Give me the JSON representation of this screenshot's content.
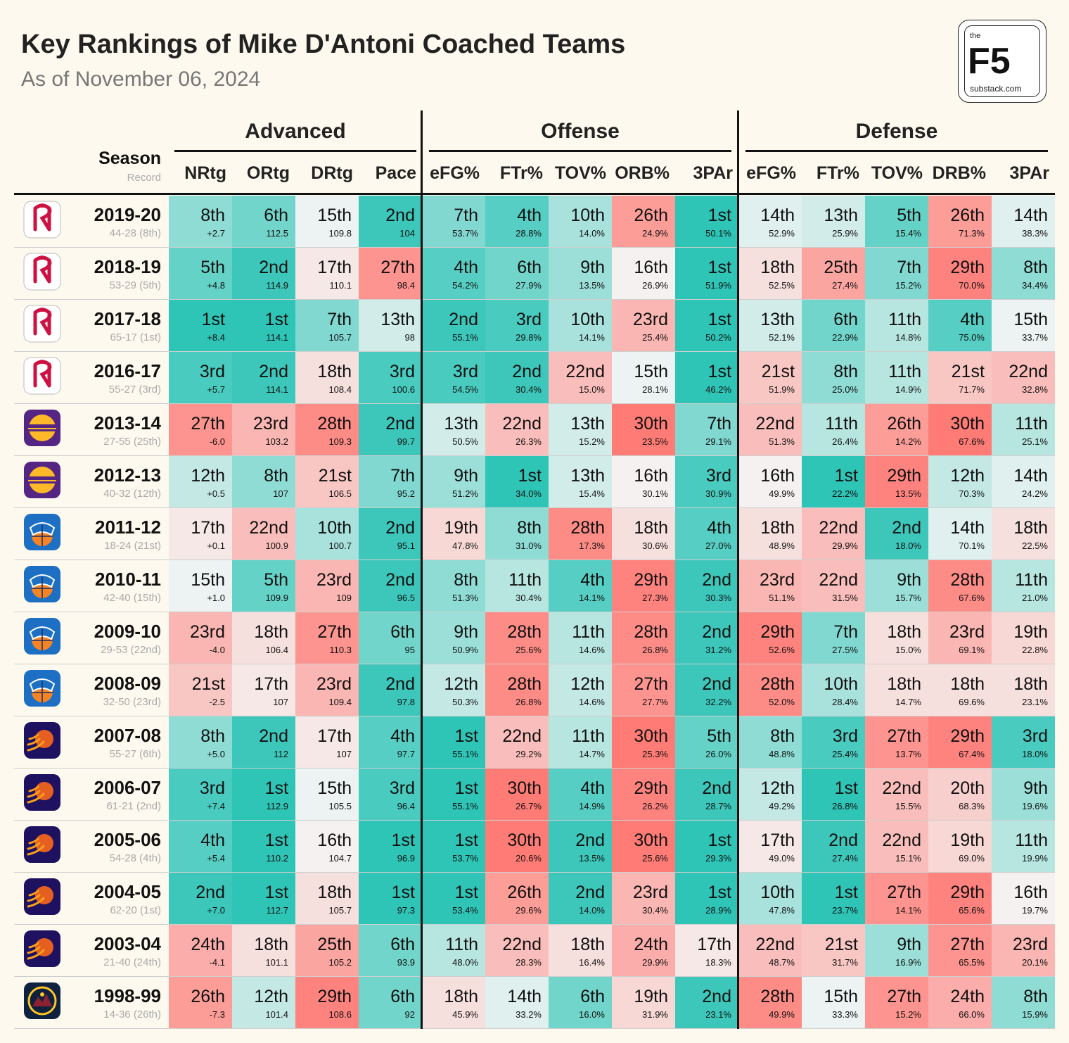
{
  "title": "Key Rankings of Mike D'Antoni Coached Teams",
  "subtitle": "As of November 06, 2024",
  "logo": {
    "the": "the",
    "name": "F5",
    "domain": "substack.com"
  },
  "colors": {
    "good": "#2ec4b6",
    "neutral": "#f4f5f4",
    "bad": "#ff7b75",
    "background": "#fdf9ee"
  },
  "chart_data": {
    "type": "table",
    "row_header": {
      "label": "Season",
      "sublabel": "Record"
    },
    "groups": [
      {
        "name": "Advanced",
        "columns": [
          "NRtg",
          "ORtg",
          "DRtg",
          "Pace"
        ]
      },
      {
        "name": "Offense",
        "columns": [
          "eFG%",
          "FTr%",
          "TOV%",
          "ORB%",
          "3PAr"
        ]
      },
      {
        "name": "Defense",
        "columns": [
          "eFG%",
          "FTr%",
          "TOV%",
          "DRB%",
          "3PAr"
        ]
      }
    ],
    "rows": [
      {
        "season": "2019-20",
        "record": "44-28 (8th)",
        "team_icon": "rockets-logo-icon",
        "ranks": [
          "8th",
          "6th",
          "15th",
          "2nd",
          "7th",
          "4th",
          "10th",
          "26th",
          "1st",
          "14th",
          "13th",
          "5th",
          "26th",
          "14th"
        ],
        "values": [
          "+2.7",
          "112.5",
          "109.8",
          "104",
          "53.7%",
          "28.8%",
          "14.0%",
          "24.9%",
          "50.1%",
          "52.9%",
          "25.9%",
          "15.4%",
          "71.3%",
          "38.3%"
        ]
      },
      {
        "season": "2018-19",
        "record": "53-29 (5th)",
        "team_icon": "rockets-logo-icon",
        "ranks": [
          "5th",
          "2nd",
          "17th",
          "27th",
          "4th",
          "6th",
          "9th",
          "16th",
          "1st",
          "18th",
          "25th",
          "7th",
          "29th",
          "8th"
        ],
        "values": [
          "+4.8",
          "114.9",
          "110.1",
          "98.4",
          "54.2%",
          "27.9%",
          "13.5%",
          "26.9%",
          "51.9%",
          "52.5%",
          "27.4%",
          "15.2%",
          "70.0%",
          "34.4%"
        ]
      },
      {
        "season": "2017-18",
        "record": "65-17 (1st)",
        "team_icon": "rockets-logo-icon",
        "ranks": [
          "1st",
          "1st",
          "7th",
          "13th",
          "2nd",
          "3rd",
          "10th",
          "23rd",
          "1st",
          "13th",
          "6th",
          "11th",
          "4th",
          "15th"
        ],
        "values": [
          "+8.4",
          "114.1",
          "105.7",
          "98",
          "55.1%",
          "29.8%",
          "14.1%",
          "25.4%",
          "50.2%",
          "52.1%",
          "22.9%",
          "14.8%",
          "75.0%",
          "33.7%"
        ]
      },
      {
        "season": "2016-17",
        "record": "55-27 (3rd)",
        "team_icon": "rockets-logo-icon",
        "ranks": [
          "3rd",
          "2nd",
          "18th",
          "3rd",
          "3rd",
          "2nd",
          "22nd",
          "15th",
          "1st",
          "21st",
          "8th",
          "11th",
          "21st",
          "22nd"
        ],
        "values": [
          "+5.7",
          "114.1",
          "108.4",
          "100.6",
          "54.5%",
          "30.4%",
          "15.0%",
          "28.1%",
          "46.2%",
          "51.9%",
          "25.0%",
          "14.9%",
          "71.7%",
          "32.8%"
        ]
      },
      {
        "season": "2013-14",
        "record": "27-55 (25th)",
        "team_icon": "lakers-logo-icon",
        "ranks": [
          "27th",
          "23rd",
          "28th",
          "2nd",
          "13th",
          "22nd",
          "13th",
          "30th",
          "7th",
          "22nd",
          "11th",
          "26th",
          "30th",
          "11th"
        ],
        "values": [
          "-6.0",
          "103.2",
          "109.3",
          "99.7",
          "50.5%",
          "26.3%",
          "15.2%",
          "23.5%",
          "29.1%",
          "51.3%",
          "26.4%",
          "14.2%",
          "67.6%",
          "25.1%"
        ]
      },
      {
        "season": "2012-13",
        "record": "40-32 (12th)",
        "team_icon": "lakers-logo-icon",
        "ranks": [
          "12th",
          "8th",
          "21st",
          "7th",
          "9th",
          "1st",
          "13th",
          "16th",
          "3rd",
          "16th",
          "1st",
          "29th",
          "12th",
          "14th"
        ],
        "values": [
          "+0.5",
          "107",
          "106.5",
          "95.2",
          "51.2%",
          "34.0%",
          "15.4%",
          "30.1%",
          "30.9%",
          "49.9%",
          "22.2%",
          "13.5%",
          "70.3%",
          "24.2%"
        ]
      },
      {
        "season": "2011-12",
        "record": "18-24 (21st)",
        "team_icon": "knicks-logo-icon",
        "ranks": [
          "17th",
          "22nd",
          "10th",
          "2nd",
          "19th",
          "8th",
          "28th",
          "18th",
          "4th",
          "18th",
          "22nd",
          "2nd",
          "14th",
          "18th"
        ],
        "values": [
          "+0.1",
          "100.9",
          "100.7",
          "95.1",
          "47.8%",
          "31.0%",
          "17.3%",
          "30.6%",
          "27.0%",
          "48.9%",
          "29.9%",
          "18.0%",
          "70.1%",
          "22.5%"
        ]
      },
      {
        "season": "2010-11",
        "record": "42-40 (15th)",
        "team_icon": "knicks-logo-icon",
        "ranks": [
          "15th",
          "5th",
          "23rd",
          "2nd",
          "8th",
          "11th",
          "4th",
          "29th",
          "2nd",
          "23rd",
          "22nd",
          "9th",
          "28th",
          "11th"
        ],
        "values": [
          "+1.0",
          "109.9",
          "109",
          "96.5",
          "51.3%",
          "30.4%",
          "14.1%",
          "27.3%",
          "30.3%",
          "51.1%",
          "31.5%",
          "15.7%",
          "67.6%",
          "21.0%"
        ]
      },
      {
        "season": "2009-10",
        "record": "29-53 (22nd)",
        "team_icon": "knicks-logo-icon",
        "ranks": [
          "23rd",
          "18th",
          "27th",
          "6th",
          "9th",
          "28th",
          "11th",
          "28th",
          "2nd",
          "29th",
          "7th",
          "18th",
          "23rd",
          "19th"
        ],
        "values": [
          "-4.0",
          "106.4",
          "110.3",
          "95",
          "50.9%",
          "25.6%",
          "14.6%",
          "26.8%",
          "31.2%",
          "52.6%",
          "27.5%",
          "15.0%",
          "69.1%",
          "22.8%"
        ]
      },
      {
        "season": "2008-09",
        "record": "32-50 (23rd)",
        "team_icon": "knicks-logo-icon",
        "ranks": [
          "21st",
          "17th",
          "23rd",
          "2nd",
          "12th",
          "28th",
          "12th",
          "27th",
          "2nd",
          "28th",
          "10th",
          "18th",
          "18th",
          "18th"
        ],
        "values": [
          "-2.5",
          "107",
          "109.4",
          "97.8",
          "50.3%",
          "26.8%",
          "14.6%",
          "27.7%",
          "32.2%",
          "52.0%",
          "28.4%",
          "14.7%",
          "69.6%",
          "23.1%"
        ]
      },
      {
        "season": "2007-08",
        "record": "55-27 (6th)",
        "team_icon": "suns-logo-icon",
        "ranks": [
          "8th",
          "2nd",
          "17th",
          "4th",
          "1st",
          "22nd",
          "11th",
          "30th",
          "5th",
          "8th",
          "3rd",
          "27th",
          "29th",
          "3rd"
        ],
        "values": [
          "+5.0",
          "112",
          "107",
          "97.7",
          "55.1%",
          "29.2%",
          "14.7%",
          "25.3%",
          "26.0%",
          "48.8%",
          "25.4%",
          "13.7%",
          "67.4%",
          "18.0%"
        ]
      },
      {
        "season": "2006-07",
        "record": "61-21 (2nd)",
        "team_icon": "suns-logo-icon",
        "ranks": [
          "3rd",
          "1st",
          "15th",
          "3rd",
          "1st",
          "30th",
          "4th",
          "29th",
          "2nd",
          "12th",
          "1st",
          "22nd",
          "20th",
          "9th"
        ],
        "values": [
          "+7.4",
          "112.9",
          "105.5",
          "96.4",
          "55.1%",
          "26.7%",
          "14.9%",
          "26.2%",
          "28.7%",
          "49.2%",
          "26.8%",
          "15.5%",
          "68.3%",
          "19.6%"
        ]
      },
      {
        "season": "2005-06",
        "record": "54-28 (4th)",
        "team_icon": "suns-logo-icon",
        "ranks": [
          "4th",
          "1st",
          "16th",
          "1st",
          "1st",
          "30th",
          "2nd",
          "30th",
          "1st",
          "17th",
          "2nd",
          "22nd",
          "19th",
          "11th"
        ],
        "values": [
          "+5.4",
          "110.2",
          "104.7",
          "96.9",
          "53.7%",
          "20.6%",
          "13.5%",
          "25.6%",
          "29.3%",
          "49.0%",
          "27.4%",
          "15.1%",
          "69.0%",
          "19.9%"
        ]
      },
      {
        "season": "2004-05",
        "record": "62-20 (1st)",
        "team_icon": "suns-logo-icon",
        "ranks": [
          "2nd",
          "1st",
          "18th",
          "1st",
          "1st",
          "26th",
          "2nd",
          "23rd",
          "1st",
          "10th",
          "1st",
          "27th",
          "29th",
          "16th"
        ],
        "values": [
          "+7.0",
          "112.7",
          "105.7",
          "97.3",
          "53.4%",
          "29.6%",
          "14.0%",
          "30.4%",
          "28.9%",
          "47.8%",
          "23.7%",
          "14.1%",
          "65.6%",
          "19.7%"
        ]
      },
      {
        "season": "2003-04",
        "record": "21-40 (24th)",
        "team_icon": "suns-logo-icon",
        "ranks": [
          "24th",
          "18th",
          "25th",
          "6th",
          "11th",
          "22nd",
          "18th",
          "24th",
          "17th",
          "22nd",
          "21st",
          "9th",
          "27th",
          "23rd"
        ],
        "values": [
          "-4.1",
          "101.1",
          "105.2",
          "93.9",
          "48.0%",
          "28.3%",
          "16.4%",
          "29.9%",
          "18.3%",
          "48.7%",
          "31.7%",
          "16.9%",
          "65.5%",
          "20.1%"
        ]
      },
      {
        "season": "1998-99",
        "record": "14-36 (26th)",
        "team_icon": "nuggets-logo-icon",
        "ranks": [
          "26th",
          "12th",
          "29th",
          "6th",
          "18th",
          "14th",
          "6th",
          "19th",
          "2nd",
          "28th",
          "15th",
          "27th",
          "24th",
          "8th"
        ],
        "values": [
          "-7.3",
          "101.4",
          "108.6",
          "92",
          "45.9%",
          "33.2%",
          "16.0%",
          "31.9%",
          "23.1%",
          "49.9%",
          "33.3%",
          "15.2%",
          "66.0%",
          "15.9%"
        ]
      }
    ]
  }
}
